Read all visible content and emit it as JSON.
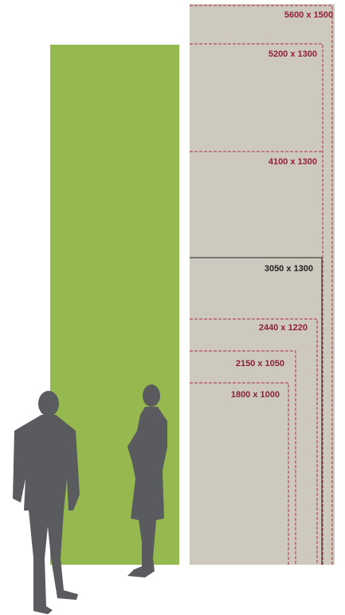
{
  "sizes": [
    {
      "label": "5600 x 1500"
    },
    {
      "label": "5200 x 1300"
    },
    {
      "label": "4100 x 1300"
    },
    {
      "label": "3050 x 1300"
    },
    {
      "label": "2440 x 1220"
    },
    {
      "label": "2150 x 1050"
    },
    {
      "label": "1800 x 1000"
    }
  ]
}
